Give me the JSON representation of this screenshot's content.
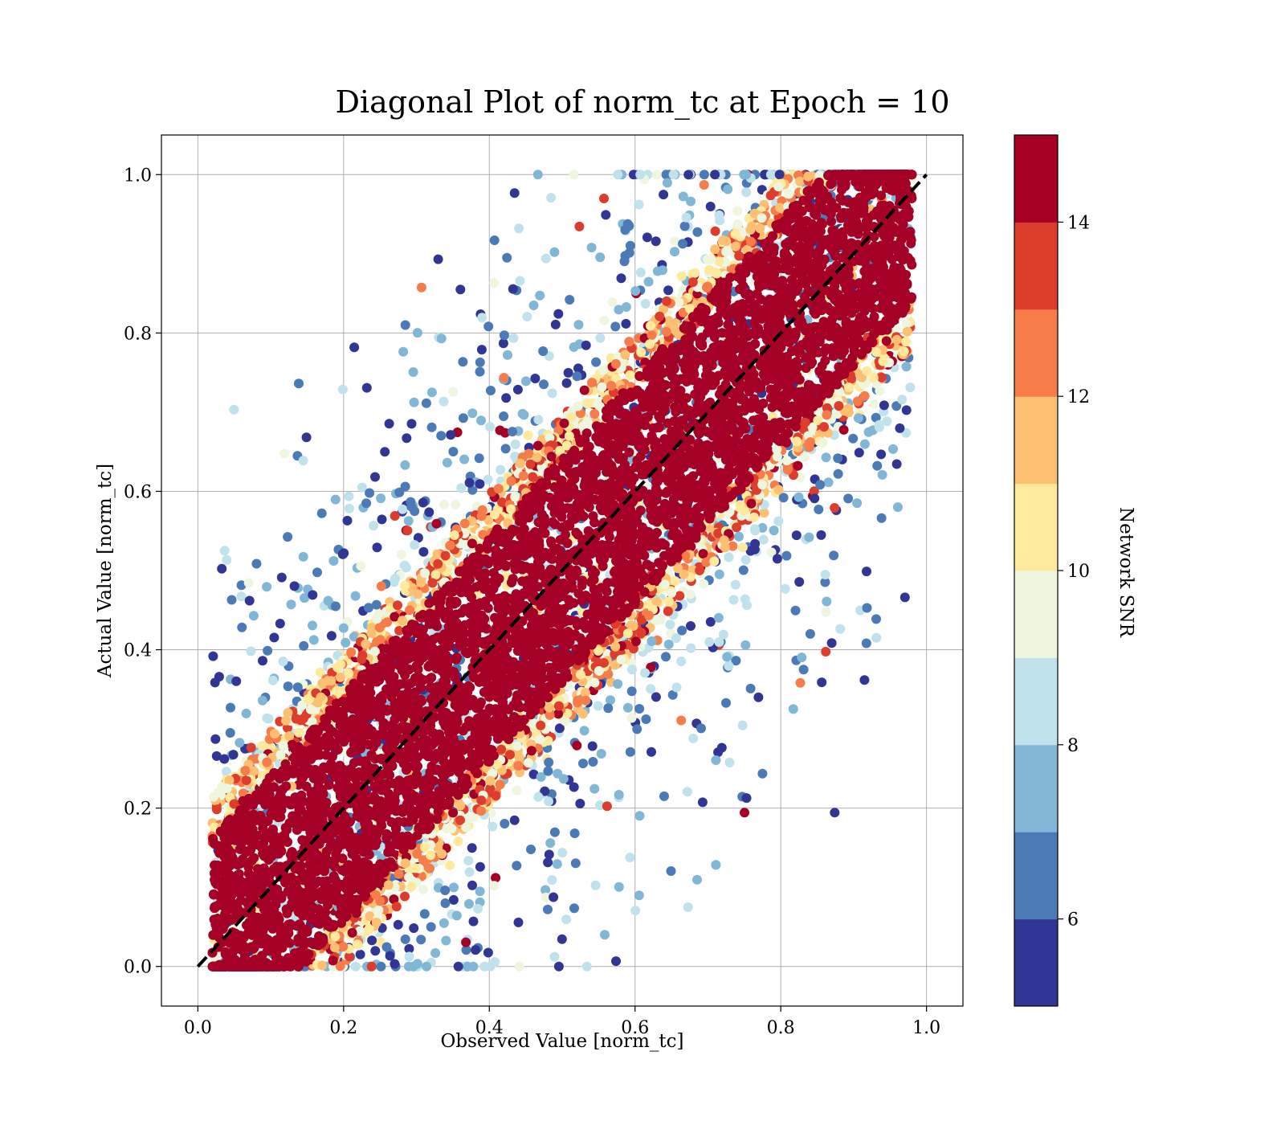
{
  "chart_data": {
    "type": "scatter",
    "title": "Diagonal Plot of norm_tc at Epoch = 10",
    "xlabel": "Observed Value [norm_tc]",
    "ylabel": "Actual Value [norm_tc]",
    "xlim": [
      -0.05,
      1.05
    ],
    "ylim": [
      -0.05,
      1.05
    ],
    "xticks": [
      0.0,
      0.2,
      0.4,
      0.6,
      0.8,
      1.0
    ],
    "yticks": [
      0.0,
      0.2,
      0.4,
      0.6,
      0.8,
      1.0
    ],
    "xtick_labels": [
      "0.0",
      "0.2",
      "0.4",
      "0.6",
      "0.8",
      "1.0"
    ],
    "ytick_labels": [
      "0.0",
      "0.2",
      "0.4",
      "0.6",
      "0.8",
      "1.0"
    ],
    "grid": true,
    "reference_line": {
      "style": "dashed",
      "color": "#000000",
      "from": [
        0.0,
        0.0
      ],
      "to": [
        1.0,
        1.0
      ]
    },
    "scatter_description": {
      "band_half_width": 0.15,
      "band_snr": "15",
      "outlier_snr_range": [
        5,
        11
      ],
      "x_range": [
        0.02,
        0.98
      ],
      "y_range": [
        0.0,
        1.0
      ]
    },
    "colorbar": {
      "label": "Network SNR",
      "range": [
        5,
        15
      ],
      "ticks": [
        6,
        8,
        10,
        12,
        14
      ],
      "tick_labels": [
        "6",
        "8",
        "10",
        "12",
        "14"
      ],
      "bins": [
        {
          "from": 5,
          "to": 6,
          "color": "#313695"
        },
        {
          "from": 6,
          "to": 7,
          "color": "#4a7bb7"
        },
        {
          "from": 7,
          "to": 8,
          "color": "#80b6d6"
        },
        {
          "from": 8,
          "to": 9,
          "color": "#c0e2ed"
        },
        {
          "from": 9,
          "to": 10,
          "color": "#eef6e0"
        },
        {
          "from": 10,
          "to": 11,
          "color": "#fee99d"
        },
        {
          "from": 11,
          "to": 12,
          "color": "#fdbf71"
        },
        {
          "from": 12,
          "to": 13,
          "color": "#f67c4a"
        },
        {
          "from": 13,
          "to": 14,
          "color": "#dd3d2d"
        },
        {
          "from": 14,
          "to": 15,
          "color": "#a50026"
        }
      ]
    }
  }
}
